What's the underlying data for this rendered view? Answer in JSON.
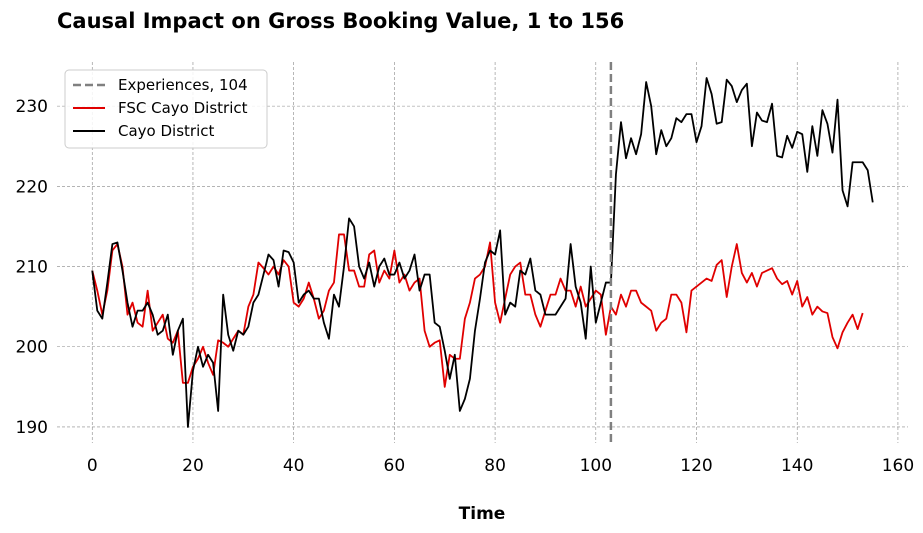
{
  "chart_data": {
    "type": "line",
    "title": "Causal Impact on Gross Booking Value, 1 to 156",
    "xlabel": "Time",
    "ylabel": "",
    "xlim": [
      -7,
      162
    ],
    "ylim": [
      188,
      235.5
    ],
    "xticks": [
      0,
      20,
      40,
      60,
      80,
      100,
      120,
      140,
      160
    ],
    "yticks": [
      190,
      200,
      210,
      220,
      230
    ],
    "grid": true,
    "legend_position": "top-left",
    "intervention": {
      "label": "Experiences, 104",
      "x": 103,
      "color": "#808080"
    },
    "series": [
      {
        "name": "FSC Cayo District",
        "color": "#e00000",
        "values": [
          209.5,
          207.0,
          204.0,
          207.0,
          212.0,
          212.8,
          210.0,
          204.0,
          205.5,
          203.0,
          202.5,
          207.0,
          202.0,
          203.0,
          204.0,
          201.0,
          200.5,
          202.0,
          195.5,
          195.5,
          197.5,
          198.5,
          200.0,
          198.0,
          196.5,
          200.8,
          200.5,
          200.0,
          201.0,
          202.0,
          201.5,
          205.0,
          206.5,
          210.5,
          209.8,
          209.0,
          210.0,
          209.0,
          210.8,
          210.0,
          205.5,
          205.0,
          206.0,
          208.0,
          206.0,
          203.5,
          204.5,
          207.0,
          208.0,
          214.0,
          214.0,
          209.5,
          209.5,
          207.5,
          207.5,
          211.5,
          212.0,
          208.0,
          209.5,
          208.5,
          212.0,
          208.0,
          209.0,
          207.0,
          208.0,
          208.5,
          202.0,
          200.0,
          200.5,
          200.8,
          195.0,
          199.0,
          198.5,
          198.5,
          203.5,
          205.5,
          208.5,
          209.0,
          210.0,
          213.0,
          205.5,
          203.0,
          206.0,
          209.0,
          210.0,
          210.5,
          206.5,
          206.5,
          204.0,
          202.5,
          204.5,
          206.5,
          206.5,
          208.5,
          207.0,
          207.0,
          205.0,
          207.5,
          205.0,
          206.0,
          207.0,
          206.5,
          201.5,
          205.0,
          204.0,
          206.5,
          205.0,
          207.0,
          207.0,
          205.5,
          205.0,
          204.5,
          202.0,
          203.0,
          203.5,
          206.5,
          206.5,
          205.5,
          201.8,
          207.0,
          207.5,
          208.0,
          208.5,
          208.2,
          210.2,
          210.8,
          206.2,
          210.0,
          212.8,
          209.2,
          208.0,
          209.2,
          207.5,
          209.2,
          209.5,
          209.8,
          208.5,
          207.8,
          208.2,
          206.5,
          208.2,
          205.0,
          206.2,
          204.0,
          205.0,
          204.4,
          204.2,
          201.2,
          199.8,
          201.8,
          203.0,
          204.0,
          202.2,
          204.2
        ]
      },
      {
        "name": "Cayo District",
        "color": "#000000",
        "values": [
          209.5,
          204.5,
          203.5,
          208.0,
          212.8,
          213.0,
          209.5,
          205.5,
          202.5,
          204.5,
          204.5,
          205.5,
          204.0,
          201.5,
          202.0,
          204.0,
          199.0,
          202.0,
          203.5,
          190.0,
          197.0,
          200.0,
          197.5,
          199.0,
          198.0,
          192.0,
          206.5,
          201.5,
          199.5,
          202.0,
          201.5,
          202.5,
          205.5,
          206.5,
          209.0,
          211.5,
          210.8,
          207.5,
          212.0,
          211.8,
          210.5,
          205.5,
          206.5,
          207.0,
          206.0,
          206.0,
          203.0,
          201.0,
          206.5,
          205.0,
          210.0,
          216.0,
          215.0,
          210.0,
          208.5,
          210.5,
          207.5,
          210.0,
          211.0,
          209.0,
          209.0,
          210.5,
          208.5,
          209.5,
          211.5,
          207.0,
          209.0,
          209.0,
          203.0,
          202.5,
          199.5,
          196.0,
          199.0,
          192.0,
          193.5,
          196.0,
          202.0,
          206.0,
          210.5,
          212.0,
          211.5,
          214.5,
          204.0,
          205.5,
          205.0,
          209.5,
          209.0,
          211.0,
          207.0,
          206.5,
          204.0,
          204.0,
          204.0,
          205.0,
          206.0,
          212.8,
          207.5,
          205.5,
          201.0,
          210.0,
          203.0,
          205.5,
          208.0,
          208.0,
          221.5,
          228.0,
          223.5,
          226.0,
          224.0,
          226.5,
          233.0,
          230.0,
          224.0,
          227.0,
          225.0,
          226.0,
          228.5,
          228.0,
          229.0,
          229.0,
          225.5,
          227.5,
          233.5,
          231.5,
          227.8,
          228.0,
          233.3,
          232.5,
          230.5,
          232.0,
          232.8,
          225.0,
          229.2,
          228.2,
          228.0,
          230.3,
          223.8,
          223.6,
          226.3,
          224.8,
          226.8,
          226.5,
          221.8,
          227.5,
          223.8,
          229.5,
          227.8,
          224.2,
          230.8,
          219.5,
          217.5,
          223.0,
          223.0,
          223.0,
          222.0,
          218.0
        ]
      }
    ]
  }
}
